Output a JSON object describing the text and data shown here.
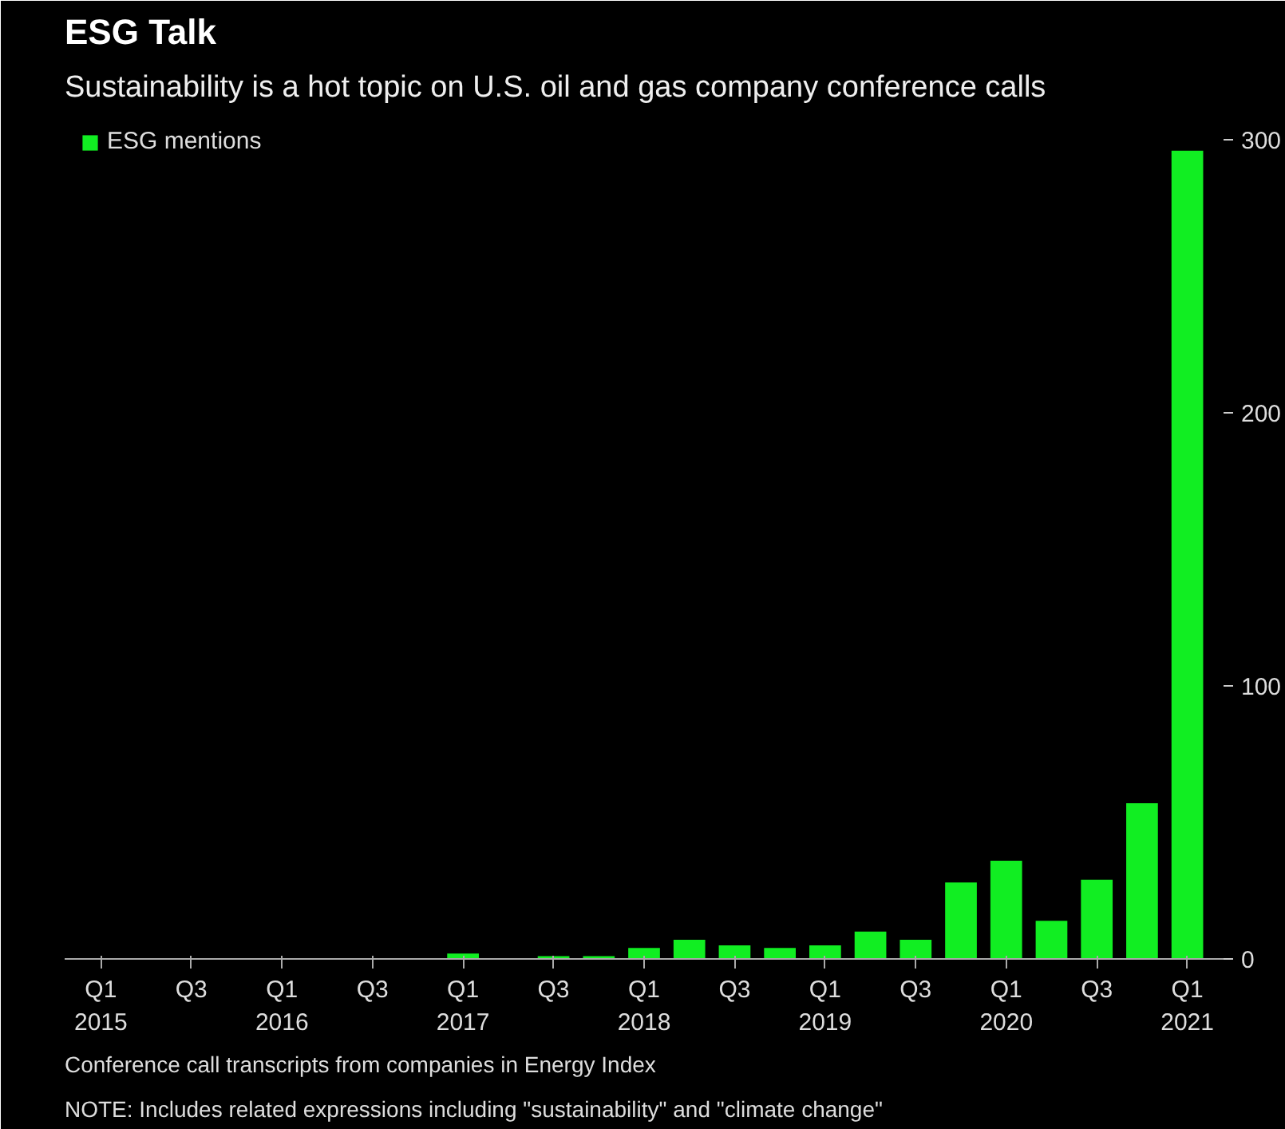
{
  "chart_data": {
    "type": "bar",
    "title": "ESG Talk",
    "subtitle": "Sustainability is a hot topic on U.S. oil and gas company conference calls",
    "categories": [
      "Q1\n2015",
      null,
      "Q3",
      null,
      "Q1\n2016",
      null,
      "Q3",
      null,
      "Q1\n2017",
      null,
      "Q3",
      null,
      "Q1\n2018",
      null,
      "Q3",
      null,
      "Q1\n2019",
      null,
      "Q3",
      null,
      "Q1\n2020",
      null,
      "Q3",
      null,
      "Q1\n2021"
    ],
    "series": [
      {
        "name": "ESG mentions",
        "color": "#11ee22",
        "values": [
          0,
          0,
          0,
          0,
          0,
          0,
          0,
          0,
          2,
          0,
          1,
          1,
          4,
          7,
          5,
          4,
          5,
          10,
          7,
          28,
          36,
          14,
          29,
          57,
          296
        ]
      }
    ],
    "ylim": [
      0,
      310
    ],
    "yticks": [
      0,
      100,
      200,
      300
    ],
    "grid": false,
    "legend": "top left",
    "annotations": [
      "Conference call transcripts from companies in Energy Index",
      "NOTE: Includes related expressions including \"sustainability\" and \"climate change\""
    ]
  }
}
